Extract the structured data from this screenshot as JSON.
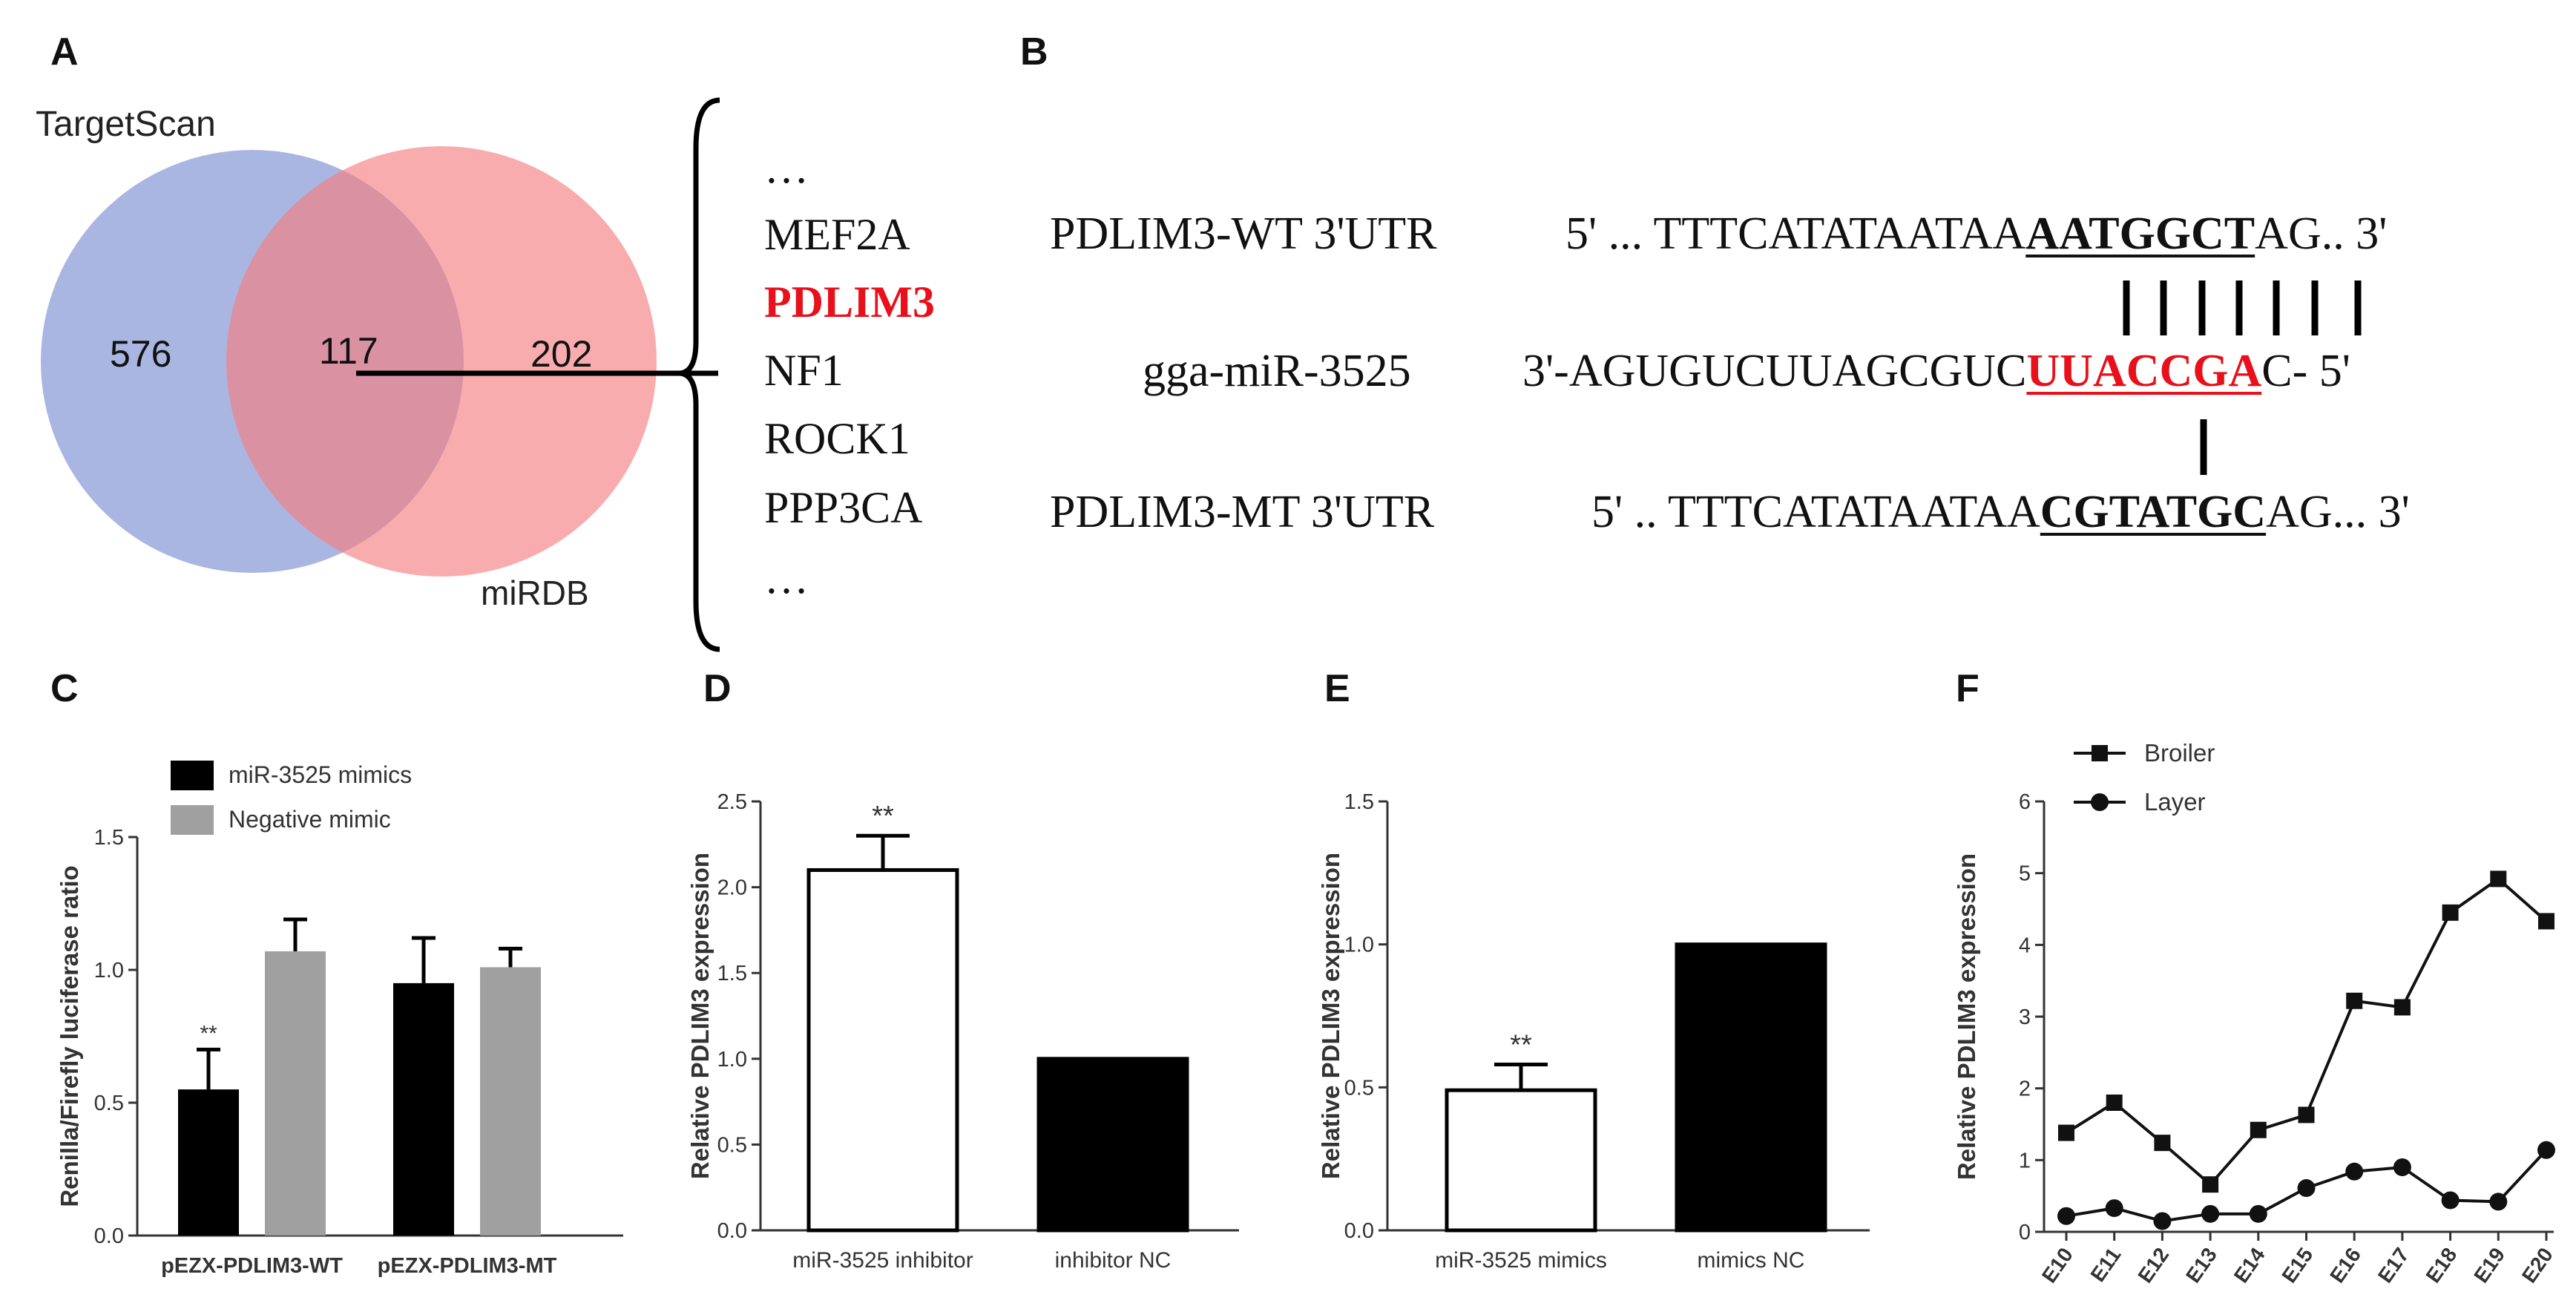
{
  "panels": {
    "a": "A",
    "b": "B",
    "c": "C",
    "d": "D",
    "e": "E",
    "f": "F"
  },
  "venn": {
    "left_label": "TargetScan",
    "right_label": "miRDB",
    "left_only": "576",
    "overlap": "117",
    "right_only": "202",
    "left_color": "#7d8fd2",
    "right_color": "#f47f81"
  },
  "gene_list": {
    "ellipsis_top": "…",
    "items": [
      "MEF2A",
      "PDLIM3",
      "NF1",
      "ROCK1",
      "PPP3CA"
    ],
    "highlight": "PDLIM3",
    "ellipsis_bottom": "…"
  },
  "sequences": {
    "wt_label": "PDLIM3-WT 3'UTR",
    "wt_prefix": "5' ... TTTCATATAATAA",
    "wt_site": "AATGGCT",
    "wt_suffix": "AG.. 3'",
    "mir_label": "gga-miR-3525",
    "mir_prefix": "3'-AGUGUCUUAGCGUC",
    "mir_seed": "UUACCGA",
    "mir_suffix": "C- 5'",
    "mt_label": "PDLIM3-MT 3'UTR",
    "mt_prefix": "5' .. TTTCATATAATAA",
    "mt_site": "CGTATGC",
    "mt_suffix": "AG... 3'"
  },
  "chart_data": [
    {
      "panel": "C",
      "type": "bar",
      "categories": [
        "pEZX-PDLIM3-WT",
        "pEZX-PDLIM3-MT"
      ],
      "series": [
        {
          "name": "miR-3525 mimics",
          "values": [
            0.55,
            0.95
          ],
          "errors": [
            0.15,
            0.17
          ],
          "color": "#000000"
        },
        {
          "name": "Negative mimic",
          "values": [
            1.07,
            1.01
          ],
          "errors": [
            0.12,
            0.07
          ],
          "color": "#a0a0a0"
        }
      ],
      "ylabel": "Renilla/Firefly luciferase ratio",
      "ylim": [
        0,
        1.5
      ],
      "yticks": [
        "0.0",
        "0.5",
        "1.0",
        "1.5"
      ],
      "annotations": [
        {
          "category": "pEZX-PDLIM3-WT",
          "series": "miR-3525 mimics",
          "text": "**"
        }
      ],
      "legend": "top-left",
      "grid": false
    },
    {
      "panel": "D",
      "type": "bar",
      "categories": [
        "miR-3525 inhibitor",
        "inhibitor NC"
      ],
      "values": [
        2.1,
        1.0
      ],
      "errors": [
        0.2,
        0
      ],
      "fills": [
        "#ffffff",
        "#000000"
      ],
      "ylabel": "Relative PDLIM3 expression",
      "ylim": [
        0,
        2.5
      ],
      "yticks": [
        "0.0",
        "0.5",
        "1.0",
        "1.5",
        "2.0",
        "2.5"
      ],
      "annotations": [
        {
          "category": "miR-3525 inhibitor",
          "text": "**"
        }
      ],
      "grid": false
    },
    {
      "panel": "E",
      "type": "bar",
      "categories": [
        "miR-3525 mimics",
        "mimics NC"
      ],
      "values": [
        0.49,
        1.0
      ],
      "errors": [
        0.09,
        0
      ],
      "fills": [
        "#ffffff",
        "#000000"
      ],
      "ylabel": "Relative PDLIM3 expression",
      "ylim": [
        0,
        1.5
      ],
      "yticks": [
        "0.0",
        "0.5",
        "1.0",
        "1.5"
      ],
      "annotations": [
        {
          "category": "miR-3525 mimics",
          "text": "**"
        }
      ],
      "grid": false
    },
    {
      "panel": "F",
      "type": "line",
      "x": [
        "E10",
        "E11",
        "E12",
        "E13",
        "E14",
        "E15",
        "E16",
        "E17",
        "E18",
        "E19",
        "E20"
      ],
      "series": [
        {
          "name": "Broiler",
          "marker": "square",
          "values": [
            1.38,
            1.8,
            1.24,
            0.66,
            1.42,
            1.63,
            3.22,
            3.13,
            4.45,
            4.92,
            4.33
          ]
        },
        {
          "name": "Layer",
          "marker": "circle",
          "values": [
            0.22,
            0.33,
            0.15,
            0.25,
            0.25,
            0.61,
            0.84,
            0.9,
            0.44,
            0.42,
            1.14
          ]
        }
      ],
      "ylabel": "Relative PDLIM3 expression",
      "ylim": [
        0,
        6
      ],
      "yticks": [
        "0",
        "1",
        "2",
        "3",
        "4",
        "5",
        "6"
      ],
      "legend": "top-left",
      "grid": false
    }
  ]
}
